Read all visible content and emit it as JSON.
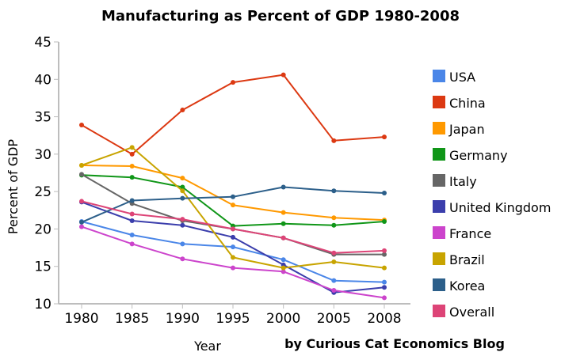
{
  "chart_data": {
    "type": "line",
    "title": "Manufacturing as Percent of GDP 1980-2008",
    "xlabel": "Year",
    "ylabel": "Percent of GDP",
    "credit": "by Curious Cat Economics Blog",
    "categories": [
      "1980",
      "1985",
      "1990",
      "1995",
      "2000",
      "2005",
      "2008"
    ],
    "ylim": [
      10,
      45
    ],
    "yticks": [
      "10",
      "15",
      "20",
      "25",
      "30",
      "35",
      "40",
      "45"
    ],
    "grid": false,
    "legend_position": "right",
    "series": [
      {
        "name": "USA",
        "color": "#4a86e8",
        "values": [
          21.0,
          19.2,
          18.0,
          17.6,
          15.9,
          13.1,
          12.9
        ]
      },
      {
        "name": "China",
        "color": "#dc3912",
        "values": [
          33.9,
          30.0,
          35.9,
          39.6,
          40.6,
          31.8,
          32.3
        ]
      },
      {
        "name": "Japan",
        "color": "#ff9900",
        "values": [
          28.5,
          28.4,
          26.8,
          23.2,
          22.2,
          21.5,
          21.2
        ]
      },
      {
        "name": "Germany",
        "color": "#109618",
        "values": [
          27.2,
          26.9,
          25.6,
          20.4,
          20.7,
          20.5,
          21.0
        ]
      },
      {
        "name": "Italy",
        "color": "#666666",
        "values": [
          27.3,
          23.4,
          21.1,
          20.0,
          18.8,
          16.6,
          16.6
        ]
      },
      {
        "name": "United Kingdom",
        "color": "#3b3eac",
        "values": [
          23.6,
          21.1,
          20.5,
          18.9,
          15.2,
          11.5,
          12.2
        ]
      },
      {
        "name": "France",
        "color": "#cc44cc",
        "values": [
          20.3,
          18.0,
          16.0,
          14.8,
          14.3,
          11.8,
          10.8
        ]
      },
      {
        "name": "Brazil",
        "color": "#c8a400",
        "values": [
          28.5,
          30.9,
          25.1,
          16.2,
          14.8,
          15.6,
          14.8
        ]
      },
      {
        "name": "Korea",
        "color": "#2c5f8a",
        "values": [
          20.9,
          23.8,
          24.1,
          24.3,
          25.6,
          25.1,
          24.8
        ]
      },
      {
        "name": "Overall",
        "color": "#dd4477",
        "values": [
          23.7,
          22.0,
          21.3,
          20.0,
          18.8,
          16.8,
          17.1
        ]
      }
    ]
  }
}
